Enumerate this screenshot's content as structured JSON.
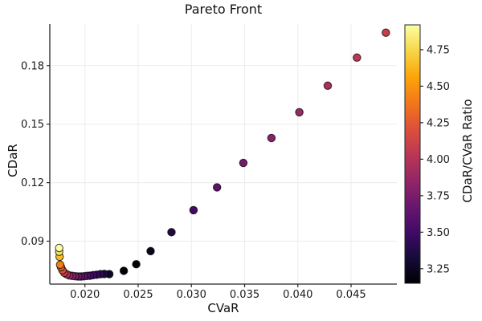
{
  "figure": {
    "title": "Pareto Front",
    "x_axis_label": "CVaR",
    "y_axis_label": "CDaR",
    "colorbar_label": "CDaR/CVaR Ratio"
  },
  "colors": {
    "background": "#ffffff",
    "grid": "#ececec",
    "spine": "#262626",
    "tick_text": "#1a1a1a",
    "marker_edge": "rgba(0,0,0,0.72)"
  },
  "chart_data": {
    "type": "scatter",
    "title": "Pareto Front",
    "xlabel": "CVaR",
    "ylabel": "CDaR",
    "color_label": "CDaR/CVaR Ratio",
    "grid": true,
    "legend_position": "colorbar-right",
    "xlim": [
      0.0167,
      0.0493
    ],
    "ylim": [
      0.068,
      0.2013
    ],
    "xticks": {
      "values": [
        0.02,
        0.025,
        0.03,
        0.035,
        0.04,
        0.045
      ],
      "labels": [
        "0.020",
        "0.025",
        "0.030",
        "0.035",
        "0.040",
        "0.045"
      ]
    },
    "yticks": {
      "values": [
        0.09,
        0.12,
        0.15,
        0.18
      ],
      "labels": [
        "0.09",
        "0.12",
        "0.15",
        "0.18"
      ]
    },
    "colorbar": {
      "vmin": 3.15,
      "vmax": 4.92,
      "ticks": [
        3.25,
        3.5,
        3.75,
        4.0,
        4.25,
        4.5,
        4.75
      ],
      "tick_labels": [
        "3.25",
        "3.50",
        "3.75",
        "4.00",
        "4.25",
        "4.50",
        "4.75"
      ],
      "colormap": "inferno",
      "stops": [
        [
          0.0,
          "#000004"
        ],
        [
          0.1,
          "#160b39"
        ],
        [
          0.2,
          "#420a68"
        ],
        [
          0.3,
          "#6a176e"
        ],
        [
          0.4,
          "#932667"
        ],
        [
          0.5,
          "#bc3754"
        ],
        [
          0.6,
          "#dd513a"
        ],
        [
          0.7,
          "#f37819"
        ],
        [
          0.8,
          "#fca50a"
        ],
        [
          0.9,
          "#f6d746"
        ],
        [
          1.0,
          "#fcffa4"
        ]
      ]
    },
    "marker": {
      "radius_px": 4.7,
      "edge_width": 1.1
    },
    "points_format": [
      "CVaR",
      "CDaR",
      "CDaR/CVaR ratio"
    ],
    "points": [
      [
        0.01758,
        0.0865,
        4.92
      ],
      [
        0.01758,
        0.0846,
        4.81
      ],
      [
        0.01762,
        0.082,
        4.65
      ],
      [
        0.01767,
        0.0779,
        4.41
      ],
      [
        0.01775,
        0.0767,
        4.32
      ],
      [
        0.01789,
        0.0751,
        4.2
      ],
      [
        0.01806,
        0.0738,
        4.09
      ],
      [
        0.01829,
        0.073,
        3.99
      ],
      [
        0.01854,
        0.0724,
        3.9
      ],
      [
        0.01881,
        0.0722,
        3.84
      ],
      [
        0.01909,
        0.072,
        3.77
      ],
      [
        0.01937,
        0.0719,
        3.71
      ],
      [
        0.01964,
        0.0719,
        3.66
      ],
      [
        0.01992,
        0.072,
        3.61
      ],
      [
        0.0202,
        0.0722,
        3.57
      ],
      [
        0.02048,
        0.0723,
        3.53
      ],
      [
        0.02078,
        0.0726,
        3.49
      ],
      [
        0.02111,
        0.0728,
        3.45
      ],
      [
        0.02146,
        0.0731,
        3.41
      ],
      [
        0.02183,
        0.0732,
        3.35
      ],
      [
        0.02229,
        0.0731,
        3.28
      ],
      [
        0.02365,
        0.0748,
        3.16
      ],
      [
        0.02482,
        0.0782,
        3.15
      ],
      [
        0.02617,
        0.0849,
        3.24
      ],
      [
        0.02813,
        0.0946,
        3.36
      ],
      [
        0.0302,
        0.1059,
        3.51
      ],
      [
        0.03241,
        0.1176,
        3.63
      ],
      [
        0.03488,
        0.1301,
        3.73
      ],
      [
        0.03752,
        0.1429,
        3.81
      ],
      [
        0.04014,
        0.1561,
        3.89
      ],
      [
        0.04281,
        0.1697,
        3.96
      ],
      [
        0.04555,
        0.1841,
        4.04
      ],
      [
        0.04827,
        0.1969,
        4.08
      ]
    ]
  }
}
